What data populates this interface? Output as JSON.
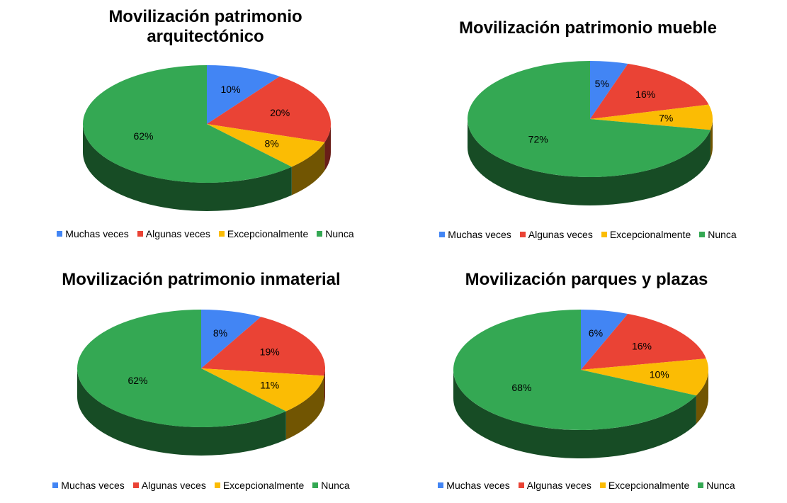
{
  "colors": {
    "Muchas veces": "#4285F4",
    "Algunas veces": "#EA4335",
    "Excepcionalmente": "#FBBC04",
    "Nunca": "#34A853"
  },
  "chart_data": [
    {
      "type": "pie",
      "title": "Movilización patrimonio arquitectónico",
      "categories": [
        "Muchas veces",
        "Algunas veces",
        "Excepcionalmente",
        "Nunca"
      ],
      "values": [
        10,
        20,
        8,
        62
      ],
      "labels": [
        "10%",
        "20%",
        "8%",
        "62%"
      ],
      "legend": "bottom"
    },
    {
      "type": "pie",
      "title": "Movilización patrimonio mueble",
      "categories": [
        "Muchas veces",
        "Algunas veces",
        "Excepcionalmente",
        "Nunca"
      ],
      "values": [
        5,
        16,
        7,
        72
      ],
      "labels": [
        "5%",
        "16%",
        "7%",
        "72%"
      ],
      "legend": "bottom"
    },
    {
      "type": "pie",
      "title": "Movilización patrimonio inmaterial",
      "categories": [
        "Muchas veces",
        "Algunas veces",
        "Excepcionalmente",
        "Nunca"
      ],
      "values": [
        8,
        19,
        11,
        62
      ],
      "labels": [
        "8%",
        "19%",
        "11%",
        "62%"
      ],
      "legend": "bottom"
    },
    {
      "type": "pie",
      "title": "Movilización parques y plazas",
      "categories": [
        "Muchas veces",
        "Algunas veces",
        "Excepcionalmente",
        "Nunca"
      ],
      "values": [
        6,
        16,
        10,
        68
      ],
      "labels": [
        "6%",
        "16%",
        "10%",
        "68%"
      ],
      "legend": "bottom"
    }
  ]
}
